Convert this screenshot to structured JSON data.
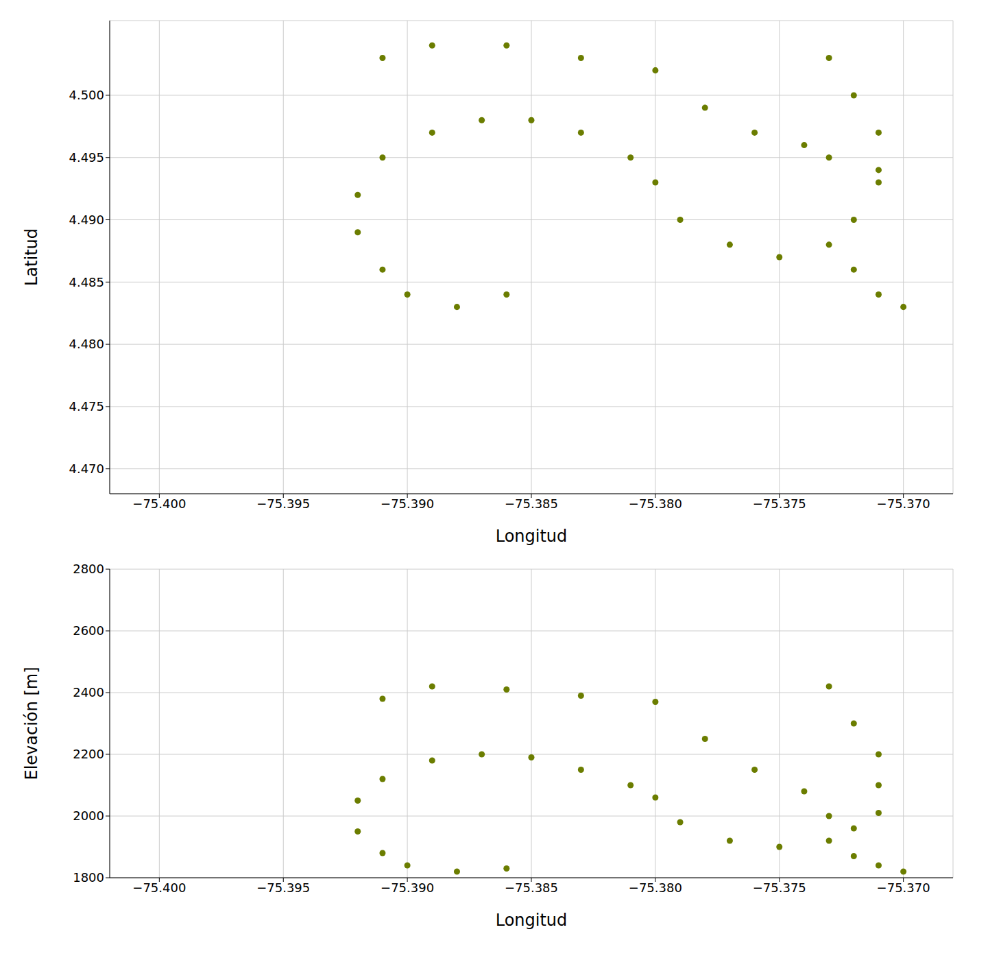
{
  "chart_data": [
    {
      "type": "scatter",
      "x_label": "Longitud",
      "y_label": "Latitud",
      "color": "#6b7d00",
      "marker": "circle",
      "grid": true,
      "xlim": [
        -75.402,
        -75.368
      ],
      "xticks": [
        {
          "value": -75.4,
          "label": "−75.400"
        },
        {
          "value": -75.395,
          "label": "−75.395"
        },
        {
          "value": -75.39,
          "label": "−75.390"
        },
        {
          "value": -75.385,
          "label": "−75.385"
        },
        {
          "value": -75.38,
          "label": "−75.380"
        },
        {
          "value": -75.375,
          "label": "−75.375"
        },
        {
          "value": -75.37,
          "label": "−75.370"
        }
      ],
      "ylim": [
        4.468,
        4.506
      ],
      "yticks": [
        {
          "value": 4.47,
          "label": "4.470"
        },
        {
          "value": 4.475,
          "label": "4.475"
        },
        {
          "value": 4.48,
          "label": "4.480"
        },
        {
          "value": 4.485,
          "label": "4.485"
        },
        {
          "value": 4.49,
          "label": "4.490"
        },
        {
          "value": 4.495,
          "label": "4.495"
        },
        {
          "value": 4.5,
          "label": "4.500"
        }
      ],
      "x": [
        -75.391,
        -75.389,
        -75.386,
        -75.383,
        -75.38,
        -75.378,
        -75.376,
        -75.374,
        -75.373,
        -75.392,
        -75.391,
        -75.389,
        -75.387,
        -75.385,
        -75.383,
        -75.381,
        -75.38,
        -75.392,
        -75.391,
        -75.39,
        -75.388,
        -75.386,
        -75.379,
        -75.377,
        -75.375,
        -75.373,
        -75.372,
        -75.371,
        -75.373,
        -75.372,
        -75.371,
        -75.371,
        -75.372,
        -75.371,
        -75.37
      ],
      "values": [
        4.503,
        4.504,
        4.504,
        4.503,
        4.502,
        4.499,
        4.497,
        4.496,
        4.495,
        4.492,
        4.495,
        4.497,
        4.498,
        4.498,
        4.497,
        4.495,
        4.493,
        4.489,
        4.486,
        4.484,
        4.483,
        4.484,
        4.49,
        4.488,
        4.487,
        4.488,
        4.49,
        4.493,
        4.503,
        4.5,
        4.497,
        4.494,
        4.486,
        4.484,
        4.483
      ]
    },
    {
      "type": "scatter",
      "x_label": "Longitud",
      "y_label": "Elevación [m]",
      "color": "#6b7d00",
      "marker": "circle",
      "grid": true,
      "xlim": [
        -75.402,
        -75.368
      ],
      "xticks": [
        {
          "value": -75.4,
          "label": "−75.400"
        },
        {
          "value": -75.395,
          "label": "−75.395"
        },
        {
          "value": -75.39,
          "label": "−75.390"
        },
        {
          "value": -75.385,
          "label": "−75.385"
        },
        {
          "value": -75.38,
          "label": "−75.380"
        },
        {
          "value": -75.375,
          "label": "−75.375"
        },
        {
          "value": -75.37,
          "label": "−75.370"
        }
      ],
      "ylim": [
        1800,
        2800
      ],
      "yticks": [
        1800,
        2000,
        2200,
        2400,
        2600,
        2800
      ],
      "x": [
        -75.391,
        -75.389,
        -75.386,
        -75.383,
        -75.38,
        -75.378,
        -75.376,
        -75.374,
        -75.373,
        -75.392,
        -75.391,
        -75.389,
        -75.387,
        -75.385,
        -75.383,
        -75.381,
        -75.38,
        -75.392,
        -75.391,
        -75.39,
        -75.388,
        -75.386,
        -75.379,
        -75.377,
        -75.375,
        -75.373,
        -75.372,
        -75.371,
        -75.373,
        -75.372,
        -75.371,
        -75.371,
        -75.372,
        -75.371,
        -75.37
      ],
      "values": [
        2380,
        2420,
        2410,
        2390,
        2370,
        2250,
        2150,
        2080,
        2000,
        2050,
        2120,
        2180,
        2200,
        2190,
        2150,
        2100,
        2060,
        1950,
        1880,
        1840,
        1820,
        1830,
        1980,
        1920,
        1900,
        1920,
        1960,
        2010,
        2420,
        2300,
        2200,
        2100,
        1870,
        1840,
        1820
      ]
    }
  ]
}
